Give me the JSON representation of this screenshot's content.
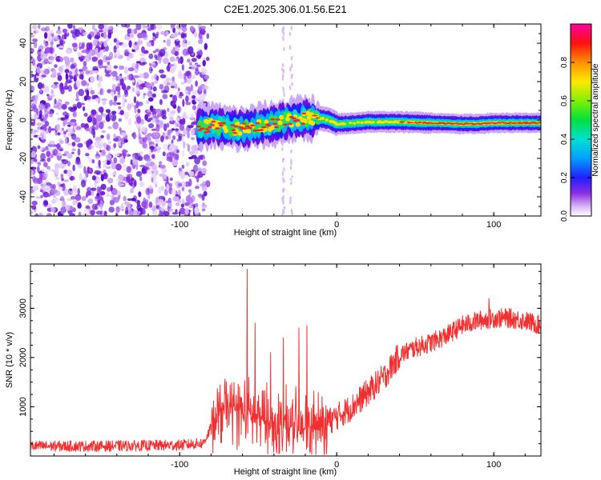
{
  "title": "C2E1.2025.306.01.56.E21",
  "chart_data": [
    {
      "type": "heatmap",
      "xlabel": "Height of straight line (km)",
      "ylabel": "Frequency (Hz)",
      "xlim": [
        -195,
        130
      ],
      "ylim": [
        -50,
        50
      ],
      "xticks": [
        -100,
        0,
        100
      ],
      "yticks": [
        -40,
        -20,
        0,
        20,
        40
      ],
      "noise_region": [
        -195,
        -82
      ],
      "signal_ridge": {
        "x": [
          -88,
          -80,
          -70,
          -60,
          -50,
          -40,
          -30,
          -20,
          -12,
          -5,
          0,
          5,
          20,
          40,
          60,
          80,
          90,
          100,
          120,
          130
        ],
        "freq": [
          -4,
          -3,
          -4,
          -5,
          -3,
          -2,
          0,
          1,
          1,
          0,
          -2,
          -2,
          -1,
          -1,
          -1.5,
          -2,
          -2,
          -1.5,
          -1.5,
          -1.5
        ]
      },
      "colorbar": {
        "label": "Normalized spectral amplitude",
        "ticks": [
          0.0,
          0.2,
          0.4,
          0.6,
          0.8
        ],
        "range": [
          0,
          1
        ]
      }
    },
    {
      "type": "line",
      "xlabel": "Height of straight line (km)",
      "ylabel": "SNR (10 * v/v)",
      "xlim": [
        -195,
        130
      ],
      "ylim": [
        0,
        3900
      ],
      "xticks": [
        -100,
        0,
        100
      ],
      "yticks": [
        1000,
        2000,
        3000
      ],
      "series": [
        {
          "name": "SNR",
          "color": "#f03030",
          "profile_x": [
            -195,
            -150,
            -100,
            -85,
            -78,
            -70,
            -60,
            -50,
            -40,
            -30,
            -20,
            -10,
            0,
            10,
            20,
            30,
            40,
            50,
            60,
            70,
            80,
            90,
            100,
            110,
            120,
            130
          ],
          "profile_y": [
            200,
            200,
            220,
            260,
            700,
            1000,
            900,
            750,
            650,
            600,
            550,
            600,
            800,
            1000,
            1300,
            1600,
            2050,
            2200,
            2300,
            2450,
            2650,
            2750,
            2800,
            2800,
            2750,
            2650
          ],
          "spikes": [
            [
              -57,
              3800
            ],
            [
              -52,
              2700
            ],
            [
              -19,
              2650
            ],
            [
              -24,
              2600
            ],
            [
              -34,
              2400
            ],
            [
              -42,
              2100
            ],
            [
              97,
              3200
            ]
          ]
        }
      ]
    }
  ]
}
